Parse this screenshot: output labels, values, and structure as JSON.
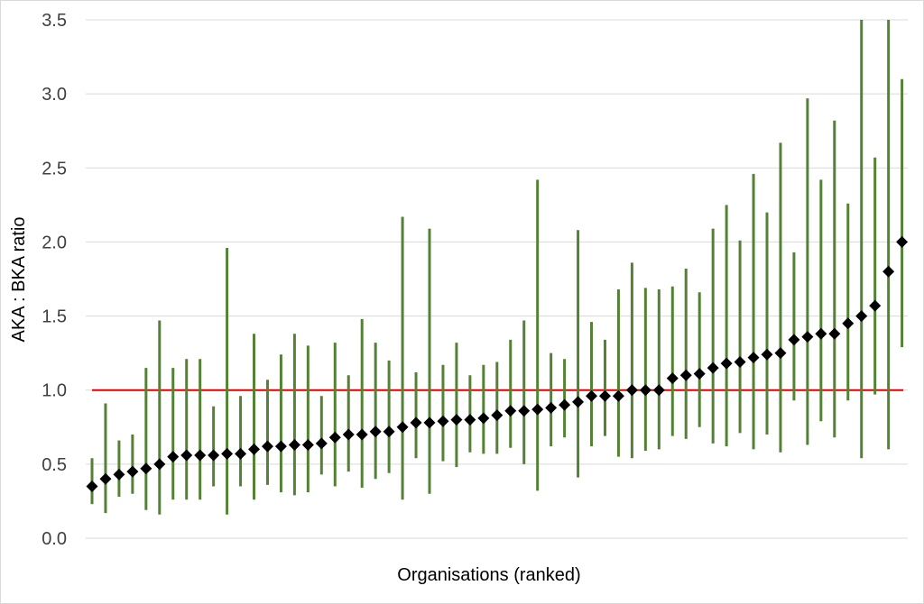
{
  "chart_data": {
    "type": "scatter",
    "xlabel": "Organisations (ranked)",
    "ylabel": "AKA : BKA ratio",
    "ylim": [
      0,
      3.5
    ],
    "yticks": [
      0.0,
      0.5,
      1.0,
      1.5,
      2.0,
      2.5,
      3.0,
      3.5
    ],
    "ytick_labels": [
      "0.0",
      "0.5",
      "1.0",
      "1.5",
      "2.0",
      "2.5",
      "3.0",
      "3.5"
    ],
    "grid": true,
    "reference_line": 1.0,
    "colors": {
      "point": "#000000",
      "error_bar": "#548235",
      "reference": "#e00000",
      "grid": "#d9d9d9"
    },
    "series": [
      {
        "values": [
          0.35,
          0.4,
          0.43,
          0.45,
          0.47,
          0.5,
          0.55,
          0.56,
          0.56,
          0.56,
          0.57,
          0.57,
          0.6,
          0.62,
          0.62,
          0.63,
          0.63,
          0.64,
          0.68,
          0.7,
          0.7,
          0.72,
          0.72,
          0.75,
          0.78,
          0.78,
          0.79,
          0.8,
          0.8,
          0.81,
          0.83,
          0.86,
          0.86,
          0.87,
          0.88,
          0.9,
          0.92,
          0.96,
          0.96,
          0.96,
          1.0,
          1.0,
          1.0,
          1.08,
          1.1,
          1.11,
          1.15,
          1.18,
          1.19,
          1.22,
          1.24,
          1.25,
          1.34,
          1.36,
          1.38,
          1.38,
          1.45,
          1.5,
          1.57,
          1.8,
          2.0
        ],
        "lower": [
          0.23,
          0.17,
          0.28,
          0.3,
          0.19,
          0.16,
          0.26,
          0.26,
          0.26,
          0.35,
          0.16,
          0.35,
          0.26,
          0.36,
          0.31,
          0.29,
          0.31,
          0.43,
          0.35,
          0.45,
          0.34,
          0.4,
          0.44,
          0.26,
          0.54,
          0.3,
          0.52,
          0.48,
          0.58,
          0.57,
          0.57,
          0.61,
          0.5,
          0.32,
          0.62,
          0.68,
          0.41,
          0.62,
          0.69,
          0.55,
          0.54,
          0.59,
          0.6,
          0.69,
          0.67,
          0.75,
          0.64,
          0.62,
          0.71,
          0.6,
          0.7,
          0.58,
          0.93,
          0.63,
          0.79,
          0.68,
          0.93,
          0.54,
          0.97,
          0.6,
          1.29
        ],
        "upper": [
          0.54,
          0.91,
          0.66,
          0.7,
          1.15,
          1.47,
          1.15,
          1.21,
          1.21,
          0.89,
          1.96,
          0.96,
          1.38,
          1.07,
          1.24,
          1.38,
          1.3,
          0.96,
          1.32,
          1.1,
          1.48,
          1.32,
          1.2,
          2.17,
          1.12,
          2.09,
          1.17,
          1.32,
          1.1,
          1.17,
          1.19,
          1.34,
          1.47,
          2.42,
          1.25,
          1.21,
          2.08,
          1.46,
          1.34,
          1.68,
          1.86,
          1.69,
          1.68,
          1.7,
          1.82,
          1.66,
          2.09,
          2.25,
          2.01,
          2.46,
          2.2,
          2.67,
          1.93,
          2.97,
          2.42,
          2.82,
          2.26,
          3.5,
          2.57,
          3.5,
          3.1
        ]
      }
    ]
  }
}
